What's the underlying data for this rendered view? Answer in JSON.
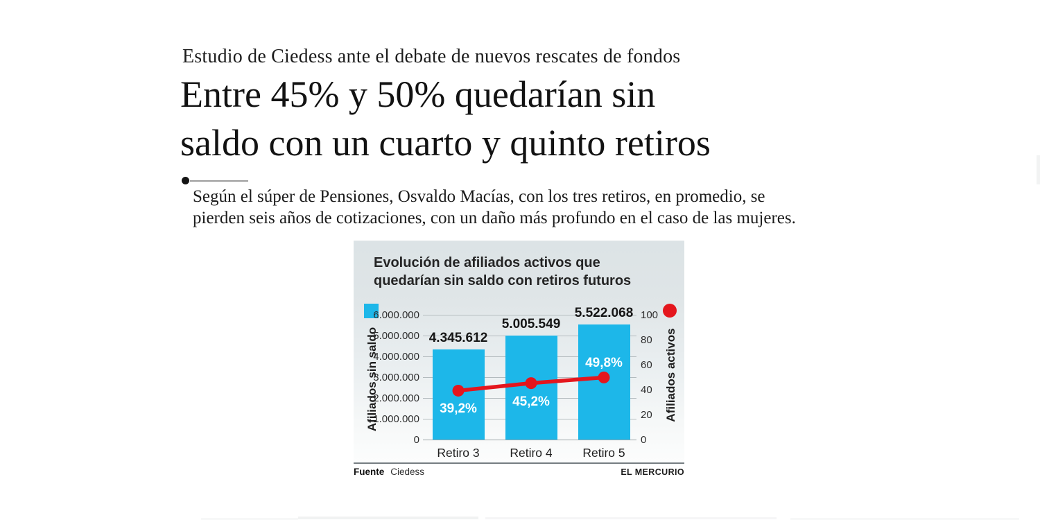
{
  "article": {
    "kicker": "Estudio de Ciedess ante el debate de nuevos rescates de fondos",
    "headline_line1": "Entre 45% y 50% quedarían sin",
    "headline_line2": "saldo con un cuarto y quinto retiros",
    "subhead_line1": "Según el súper de Pensiones, Osvaldo Macías, con los tres retiros, en promedio, se",
    "subhead_line2": "pierden seis años de cotizaciones, con un daño más profundo en el caso de las mujeres."
  },
  "infographic": {
    "title_line1": "Evolución de afiliados activos que",
    "title_line2": "quedarían sin saldo con retiros futuros",
    "source_label": "Fuente",
    "source_value": "Ciedess",
    "credit": "EL MERCURIO"
  },
  "chart_data": {
    "type": "bar",
    "title": "Evolución de afiliados activos que quedarían sin saldo con retiros futuros",
    "categories": [
      "Retiro 3",
      "Retiro 4",
      "Retiro 5"
    ],
    "series": [
      {
        "name": "Afiliados sin saldo",
        "type": "bar",
        "color": "#1db7e9",
        "values": [
          4345612,
          5005549,
          5522068
        ],
        "data_labels": [
          "4.345.612",
          "5.005.549",
          "5.522.068"
        ]
      },
      {
        "name": "Afiliados activos",
        "type": "line",
        "color": "#e4161d",
        "values": [
          39.2,
          45.2,
          49.8
        ],
        "data_labels": [
          "39,2%",
          "45,2%",
          "49,8%"
        ]
      }
    ],
    "left_axis": {
      "label": "Afiliados sin saldo",
      "ticks": [
        "6.000.000",
        "5.000.000",
        "4.000.000",
        "3.000.000",
        "2.000.000",
        "1.000.000",
        "0"
      ],
      "min": 0,
      "max": 6000000
    },
    "right_axis": {
      "label": "Afiliados activos",
      "ticks": [
        "100",
        "80",
        "60",
        "40",
        "20",
        "0"
      ],
      "min": 0,
      "max": 100
    },
    "grid": true,
    "legend_position": "top"
  }
}
